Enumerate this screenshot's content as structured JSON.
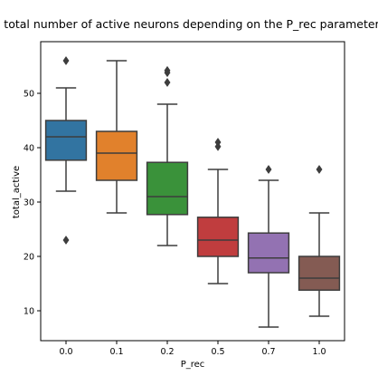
{
  "chart_data": {
    "type": "box",
    "title": "total number of active neurons  depending on the P_rec parameter",
    "xlabel": "P_rec",
    "ylabel": "total_active",
    "ylim": [
      4.5,
      59.5
    ],
    "yticks": [
      10,
      20,
      30,
      40,
      50
    ],
    "categories": [
      "0.0",
      "0.1",
      "0.2",
      "0.5",
      "0.7",
      "1.0"
    ],
    "boxes": [
      {
        "category": "0.0",
        "whisker_low": 32,
        "q1": 37.7,
        "median": 42,
        "q3": 45,
        "whisker_high": 51,
        "outliers": [
          56,
          23
        ],
        "color": "#3274a1"
      },
      {
        "category": "0.1",
        "whisker_low": 28,
        "q1": 34,
        "median": 39,
        "q3": 43,
        "whisker_high": 56,
        "outliers": [],
        "color": "#e1812c"
      },
      {
        "category": "0.2",
        "whisker_low": 22,
        "q1": 27.7,
        "median": 31,
        "q3": 37.3,
        "whisker_high": 48,
        "outliers": [
          54.2,
          53.8,
          52
        ],
        "color": "#3a923a"
      },
      {
        "category": "0.5",
        "whisker_low": 15,
        "q1": 20,
        "median": 23,
        "q3": 27.2,
        "whisker_high": 36,
        "outliers": [
          41,
          40.2
        ],
        "color": "#c03d3e"
      },
      {
        "category": "0.7",
        "whisker_low": 7,
        "q1": 17,
        "median": 19.7,
        "q3": 24.3,
        "whisker_high": 34,
        "outliers": [
          36
        ],
        "color": "#9372b2"
      },
      {
        "category": "1.0",
        "whisker_low": 9,
        "q1": 13.8,
        "median": 16,
        "q3": 20,
        "whisker_high": 28,
        "outliers": [
          36
        ],
        "color": "#845b53"
      }
    ],
    "grid": false,
    "legend": "none"
  }
}
